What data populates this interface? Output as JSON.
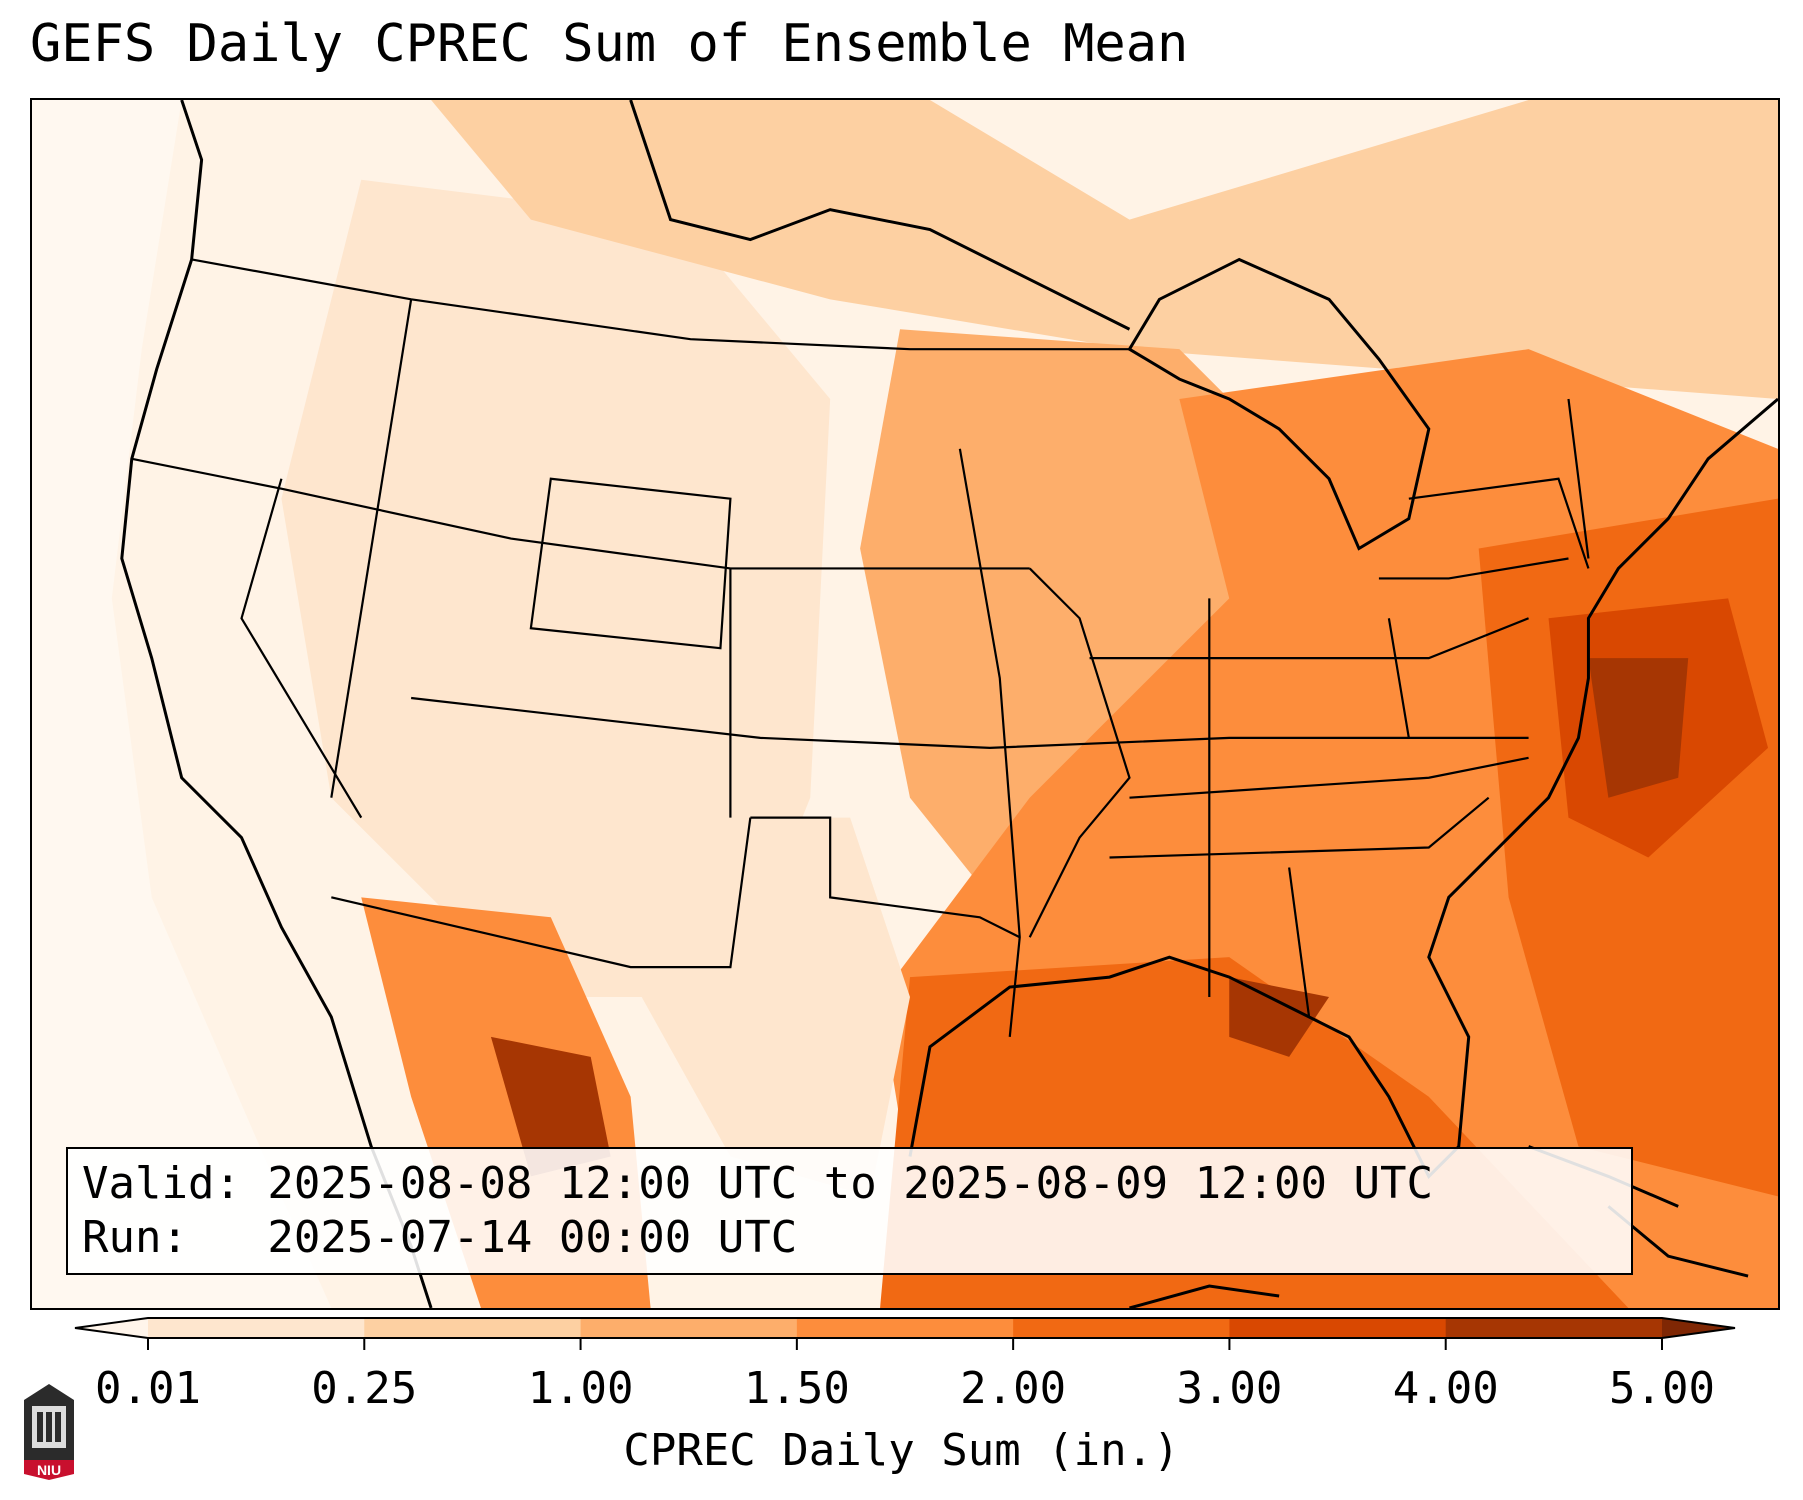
{
  "title": "GEFS Daily CPREC Sum of Ensemble Mean",
  "info": {
    "valid_line": "Valid: 2025-08-08 12:00 UTC to 2025-08-09 12:00 UTC",
    "run_line": "Run:   2025-07-14 00:00 UTC"
  },
  "colorbar": {
    "label": "CPREC Daily Sum (in.)",
    "ticks": [
      "0.01",
      "0.25",
      "1.00",
      "1.50",
      "2.00",
      "3.00",
      "4.00",
      "5.00"
    ],
    "colors": [
      "#fff5eb",
      "#fee6ce",
      "#fdd0a2",
      "#fdae6b",
      "#fd8d3c",
      "#f16913",
      "#d94801",
      "#a63603",
      "#7f2704"
    ]
  },
  "logo": {
    "text": "NIU"
  }
}
